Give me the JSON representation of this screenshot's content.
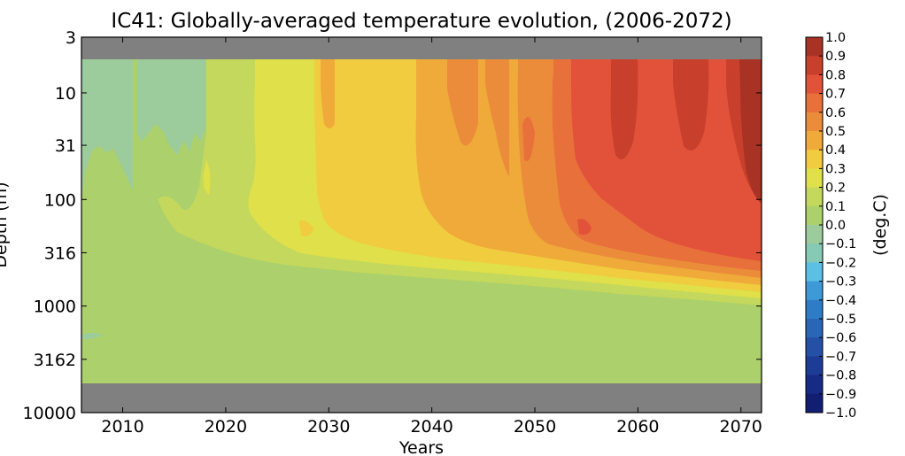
{
  "chart_data": {
    "type": "heatmap",
    "title": "IC41: Globally-averaged temperature evolution, (2006-2072)",
    "xlabel": "Years",
    "ylabel": "Depth (m)",
    "colorbar_label": "(deg.C)",
    "x_range": [
      2006,
      2072
    ],
    "x_ticks": [
      "2010",
      "2020",
      "2030",
      "2040",
      "2050",
      "2060",
      "2070"
    ],
    "y_scale": "log",
    "y_range": [
      3,
      10000
    ],
    "y_ticks": [
      "3",
      "10",
      "31",
      "100",
      "316",
      "1000",
      "3162",
      "10000"
    ],
    "masked_color": "#808080",
    "colorbar_levels": [
      "1.0",
      "0.9",
      "0.8",
      "0.7",
      "0.6",
      "0.5",
      "0.4",
      "0.3",
      "0.2",
      "0.1",
      "0.0",
      "−0.1",
      "−0.2",
      "−0.3",
      "−0.4",
      "−0.5",
      "−0.6",
      "−0.7",
      "−0.8",
      "−0.9",
      "−1.0"
    ],
    "colorbar_colors": [
      "#a83224",
      "#c8402c",
      "#e2523a",
      "#e8703a",
      "#eb8c3a",
      "#efaa3a",
      "#f1cc3e",
      "#dfe04a",
      "#c3d85c",
      "#acd06c",
      "#9ccc9c",
      "#86c9b4",
      "#5bc0e4",
      "#3e9ad6",
      "#2f7cc6",
      "#2a66b6",
      "#2450a6",
      "#1d3c96",
      "#172a84",
      "#121e72"
    ],
    "contour_fills": {
      "neg0_1": "#9ccc9c",
      "pos0_0": "#acd06c",
      "pos0_1": "#c3d85c",
      "pos0_2": "#dfe04a",
      "pos0_3": "#f1cc3e",
      "pos0_4": "#efaa3a",
      "pos0_5": "#eb8c3a",
      "pos0_6": "#e8703a",
      "pos0_7": "#e2523a",
      "pos0_8": "#c8402c",
      "pos0_9": "#a83224"
    }
  }
}
